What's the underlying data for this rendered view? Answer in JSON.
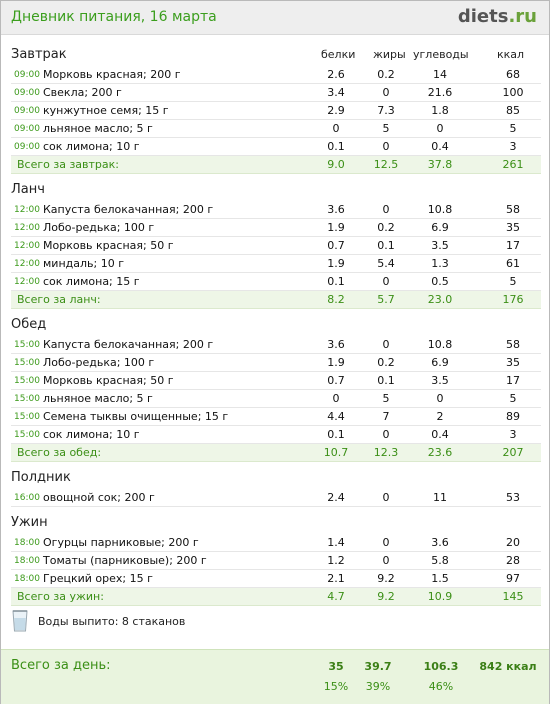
{
  "header": {
    "title": "Дневник питания, 16 марта",
    "logo_main": "diets",
    "logo_tld": ".ru"
  },
  "columns": {
    "protein": "белки",
    "fat": "жиры",
    "carbs": "углеводы",
    "kcal": "ккал"
  },
  "meals": [
    {
      "title": "Завтрак",
      "items": [
        {
          "time": "09:00",
          "food": "Морковь красная; 200 г",
          "protein": "2.6",
          "fat": "0.2",
          "carbs": "14",
          "kcal": "68"
        },
        {
          "time": "09:00",
          "food": "Свекла; 200 г",
          "protein": "3.4",
          "fat": "0",
          "carbs": "21.6",
          "kcal": "100"
        },
        {
          "time": "09:00",
          "food": "кунжутное семя; 15 г",
          "protein": "2.9",
          "fat": "7.3",
          "carbs": "1.8",
          "kcal": "85"
        },
        {
          "time": "09:00",
          "food": "льняное масло; 5 г",
          "protein": "0",
          "fat": "5",
          "carbs": "0",
          "kcal": "5"
        },
        {
          "time": "09:00",
          "food": "сок лимона; 10 г",
          "protein": "0.1",
          "fat": "0",
          "carbs": "0.4",
          "kcal": "3"
        }
      ],
      "total": {
        "label": "Всего за завтрак:",
        "protein": "9.0",
        "fat": "12.5",
        "carbs": "37.8",
        "kcal": "261"
      }
    },
    {
      "title": "Ланч",
      "items": [
        {
          "time": "12:00",
          "food": "Капуста белокачанная; 200 г",
          "protein": "3.6",
          "fat": "0",
          "carbs": "10.8",
          "kcal": "58"
        },
        {
          "time": "12:00",
          "food": "Лобо-редька; 100 г",
          "protein": "1.9",
          "fat": "0.2",
          "carbs": "6.9",
          "kcal": "35"
        },
        {
          "time": "12:00",
          "food": "Морковь красная; 50 г",
          "protein": "0.7",
          "fat": "0.1",
          "carbs": "3.5",
          "kcal": "17"
        },
        {
          "time": "12:00",
          "food": "миндаль; 10 г",
          "protein": "1.9",
          "fat": "5.4",
          "carbs": "1.3",
          "kcal": "61"
        },
        {
          "time": "12:00",
          "food": "сок лимона; 15 г",
          "protein": "0.1",
          "fat": "0",
          "carbs": "0.5",
          "kcal": "5"
        }
      ],
      "total": {
        "label": "Всего за ланч:",
        "protein": "8.2",
        "fat": "5.7",
        "carbs": "23.0",
        "kcal": "176"
      }
    },
    {
      "title": "Обед",
      "items": [
        {
          "time": "15:00",
          "food": "Капуста белокачанная; 200 г",
          "protein": "3.6",
          "fat": "0",
          "carbs": "10.8",
          "kcal": "58"
        },
        {
          "time": "15:00",
          "food": "Лобо-редька; 100 г",
          "protein": "1.9",
          "fat": "0.2",
          "carbs": "6.9",
          "kcal": "35"
        },
        {
          "time": "15:00",
          "food": "Морковь красная; 50 г",
          "protein": "0.7",
          "fat": "0.1",
          "carbs": "3.5",
          "kcal": "17"
        },
        {
          "time": "15:00",
          "food": "льняное масло; 5 г",
          "protein": "0",
          "fat": "5",
          "carbs": "0",
          "kcal": "5"
        },
        {
          "time": "15:00",
          "food": "Семена тыквы очищенные; 15 г",
          "protein": "4.4",
          "fat": "7",
          "carbs": "2",
          "kcal": "89"
        },
        {
          "time": "15:00",
          "food": "сок лимона; 10 г",
          "protein": "0.1",
          "fat": "0",
          "carbs": "0.4",
          "kcal": "3"
        }
      ],
      "total": {
        "label": "Всего за обед:",
        "protein": "10.7",
        "fat": "12.3",
        "carbs": "23.6",
        "kcal": "207"
      }
    },
    {
      "title": "Полдник",
      "items": [
        {
          "time": "16:00",
          "food": "овощной сок; 200 г",
          "protein": "2.4",
          "fat": "0",
          "carbs": "11",
          "kcal": "53"
        }
      ],
      "total": null
    },
    {
      "title": "Ужин",
      "items": [
        {
          "time": "18:00",
          "food": "Огурцы парниковые; 200 г",
          "protein": "1.4",
          "fat": "0",
          "carbs": "3.6",
          "kcal": "20"
        },
        {
          "time": "18:00",
          "food": "Томаты (парниковые); 200 г",
          "protein": "1.2",
          "fat": "0",
          "carbs": "5.8",
          "kcal": "28"
        },
        {
          "time": "18:00",
          "food": "Грецкий орех; 15 г",
          "protein": "2.1",
          "fat": "9.2",
          "carbs": "1.5",
          "kcal": "97"
        }
      ],
      "total": {
        "label": "Всего за ужин:",
        "protein": "4.7",
        "fat": "9.2",
        "carbs": "10.9",
        "kcal": "145"
      }
    }
  ],
  "water": {
    "label": "Воды выпито: 8 стаканов",
    "icon": "glass-icon"
  },
  "day_total": {
    "label": "Всего за день:",
    "protein": "35",
    "fat": "39.7",
    "carbs": "106.3",
    "kcal": "842 ккал",
    "protein_pct": "15%",
    "fat_pct": "39%",
    "carbs_pct": "46%"
  }
}
